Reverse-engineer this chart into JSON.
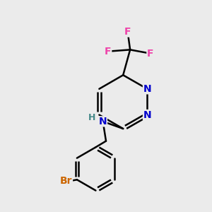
{
  "background_color": "#ebebeb",
  "bond_color": "#000000",
  "bond_width": 1.8,
  "atom_colors": {
    "N": "#0000cc",
    "F": "#ee44aa",
    "Br": "#cc6600",
    "H": "#448888",
    "C": "#000000"
  },
  "font_size_atom": 10,
  "font_size_H": 9,
  "fig_width": 3.0,
  "fig_height": 3.0,
  "dpi": 100,
  "xlim": [
    0,
    10
  ],
  "ylim": [
    0,
    10
  ]
}
